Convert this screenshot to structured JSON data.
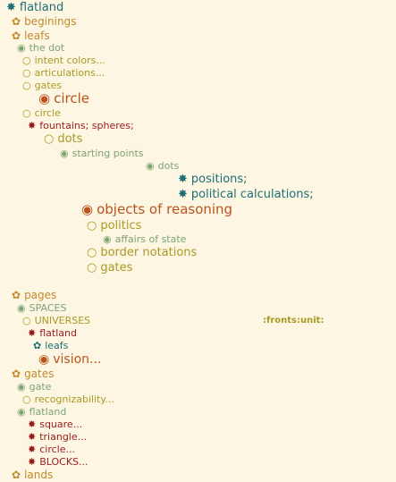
{
  "colors": {
    "background": "#fdf6e3",
    "teal": "#1e6e76",
    "gold": "#c28a2c",
    "olive": "#a99a24",
    "green": "#7da373",
    "red": "#9c1c1c",
    "orange": "#b9541c"
  },
  "outline": {
    "root": {
      "bullet": "✸",
      "label": "flatland",
      "icon": "star-burst-icon"
    },
    "beginings": {
      "bullet": "✿",
      "label": "beginings",
      "icon": "flower-icon"
    },
    "leafs": {
      "bullet": "✿",
      "label": "leafs",
      "icon": "flower-icon"
    },
    "the_dot": {
      "bullet": "◉",
      "label": "the dot",
      "icon": "filled-circle-icon"
    },
    "intent_colors": {
      "bullet": "○",
      "label": "intent colors...",
      "icon": "open-circle-icon"
    },
    "articulations": {
      "bullet": "○",
      "label": "articulations...",
      "icon": "open-circle-icon"
    },
    "gates_1": {
      "bullet": "○",
      "label": "gates",
      "icon": "open-circle-icon"
    },
    "circle_big": {
      "bullet": "◉",
      "label": "circle",
      "icon": "filled-circle-icon"
    },
    "circle_small": {
      "bullet": "○",
      "label": "circle",
      "icon": "open-circle-icon"
    },
    "fountains": {
      "bullet": "✸",
      "label": "fountains; spheres;",
      "icon": "star-burst-icon"
    },
    "dots": {
      "bullet": "○",
      "label": "dots",
      "icon": "open-circle-icon"
    },
    "starting_points": {
      "bullet": "◉",
      "label": "starting points",
      "icon": "filled-circle-icon"
    },
    "dots_small": {
      "bullet": "◉",
      "label": "dots",
      "icon": "filled-circle-icon"
    },
    "positions": {
      "bullet": "✸",
      "label": "positions;",
      "icon": "star-burst-icon"
    },
    "political_calculations": {
      "bullet": "✸",
      "label": "political calculations;",
      "icon": "star-burst-icon"
    },
    "objects_of_reasoning": {
      "bullet": "◉",
      "label": "objects of reasoning",
      "icon": "filled-circle-icon"
    },
    "politics": {
      "bullet": "○",
      "label": "politics",
      "icon": "open-circle-icon"
    },
    "affairs_of_state": {
      "bullet": "◉",
      "label": "affairs of state",
      "icon": "filled-circle-icon"
    },
    "border_notations": {
      "bullet": "○",
      "label": "border notations",
      "icon": "open-circle-icon"
    },
    "gates_2": {
      "bullet": "○",
      "label": "gates",
      "icon": "open-circle-icon"
    },
    "pages": {
      "bullet": "✿",
      "label": "pages",
      "icon": "flower-icon"
    },
    "spaces": {
      "bullet": "◉",
      "label": "SPACES",
      "icon": "filled-circle-icon"
    },
    "universes": {
      "bullet": "○",
      "label": "UNIVERSES",
      "icon": "open-circle-icon"
    },
    "fronts_unit_tag": {
      "label": ":fronts:unit:"
    },
    "flatland_2": {
      "bullet": "✸",
      "label": "flatland",
      "icon": "star-burst-icon"
    },
    "leafs_2": {
      "bullet": "✿",
      "label": "leafs",
      "icon": "flower-icon"
    },
    "vision": {
      "bullet": "◉",
      "label": "vision...",
      "icon": "filled-circle-icon"
    },
    "gates_3": {
      "bullet": "✿",
      "label": "gates",
      "icon": "flower-icon"
    },
    "gate": {
      "bullet": "◉",
      "label": "gate",
      "icon": "filled-circle-icon"
    },
    "recognizability": {
      "bullet": "○",
      "label": "recognizability...",
      "icon": "open-circle-icon"
    },
    "flatland_3": {
      "bullet": "◉",
      "label": "flatland",
      "icon": "filled-circle-icon"
    },
    "square": {
      "bullet": "✸",
      "label": "square...",
      "icon": "star-burst-icon"
    },
    "triangle": {
      "bullet": "✸",
      "label": "triangle...",
      "icon": "star-burst-icon"
    },
    "circle_3": {
      "bullet": "✸",
      "label": "circle...",
      "icon": "star-burst-icon"
    },
    "blocks": {
      "bullet": "✸",
      "label": "BLOCKS...",
      "icon": "star-burst-icon"
    },
    "lands": {
      "bullet": "✿",
      "label": "lands",
      "icon": "flower-icon"
    }
  }
}
